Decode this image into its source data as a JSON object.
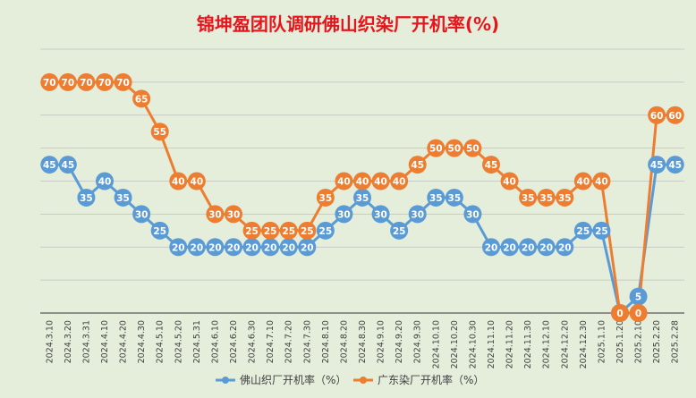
{
  "chart_data": {
    "type": "line",
    "title": "锦坤盈团队调研佛山织染厂开机率(%)",
    "xlabel": "",
    "ylabel": "",
    "ylim": [
      0,
      80
    ],
    "grid": true,
    "legend_position": "bottom",
    "categories": [
      "2024.3.10",
      "2024.3.20",
      "2024.3.31",
      "2024.4.10",
      "2024.4.20",
      "2024.4.30",
      "2024.5.10",
      "2024.5.20",
      "2024.5.31",
      "2024.6.10",
      "2024.6.20",
      "2024.6.30",
      "2024.7.10",
      "2024.7.20",
      "2024.7.30",
      "2024.8.10",
      "2024.8.20",
      "2024.8.30",
      "2024.9.10",
      "2024.9.20",
      "2024.9.30",
      "2024.10.10",
      "2024.10.20",
      "2024.10.30",
      "2024.11.10",
      "2024.11.20",
      "2024.11.30",
      "2024.12.10",
      "2024.12.20",
      "2024.12.30",
      "2025.1.10",
      "2025.1.20",
      "2025.2.10",
      "2025.2.20",
      "2025.2.28"
    ],
    "series": [
      {
        "name": "佛山织厂开机率（%）",
        "color": "#5b9bd5",
        "values": [
          45,
          45,
          35,
          40,
          35,
          30,
          25,
          20,
          20,
          20,
          20,
          20,
          20,
          20,
          20,
          25,
          30,
          35,
          30,
          25,
          30,
          35,
          35,
          30,
          20,
          20,
          20,
          20,
          20,
          25,
          25,
          0,
          5,
          45,
          45
        ]
      },
      {
        "name": "广东染厂开机率（%）",
        "color": "#ed7d31",
        "values": [
          70,
          70,
          70,
          70,
          70,
          65,
          55,
          40,
          40,
          30,
          30,
          25,
          25,
          25,
          25,
          35,
          40,
          40,
          40,
          40,
          45,
          50,
          50,
          50,
          45,
          40,
          35,
          35,
          35,
          40,
          40,
          0,
          0,
          60,
          60
        ]
      }
    ]
  },
  "colors": {
    "title": "#e8141c",
    "background": "#e4eedb",
    "gridline": "#bfbfbf",
    "label_text": "#ffffff",
    "tick_text": "#404040"
  }
}
